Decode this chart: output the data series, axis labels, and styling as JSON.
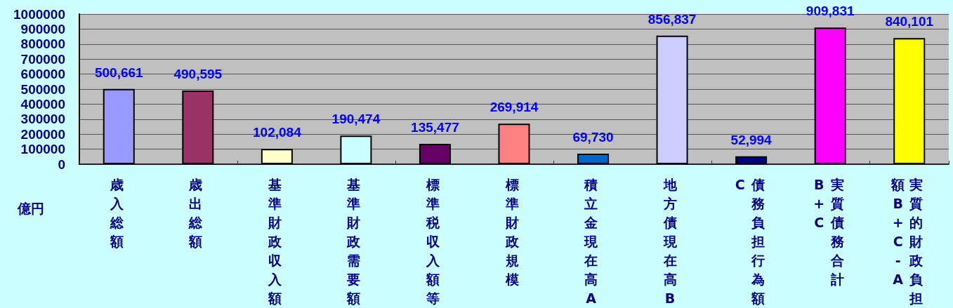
{
  "chart_data": {
    "type": "bar",
    "categories": [
      "歳入総額",
      "歳出総額",
      "基準財政収入額",
      "基準財政需要額",
      "標準税収入額等",
      "標準財政規模",
      "積立金現在高A",
      "地方債現在高B",
      "債務負担行為額C",
      "実質債務合計B+C",
      "実質的財政負担額B+C-A"
    ],
    "values": [
      500661,
      490595,
      102084,
      190474,
      135477,
      269914,
      69730,
      856837,
      52994,
      909831,
      840101
    ],
    "colors": [
      "#9999ff",
      "#993366",
      "#ffffcc",
      "#ccffff",
      "#660066",
      "#ff8080",
      "#0066cc",
      "#ccccff",
      "#000080",
      "#ff00ff",
      "#ffff00"
    ],
    "value_labels": [
      "500,661",
      "490,595",
      "102,084",
      "190,474",
      "135,477",
      "269,914",
      "69,730",
      "856,837",
      "52,994",
      "909,831",
      "840,101"
    ],
    "ylabel": "億円",
    "ylim": [
      0,
      1000000
    ],
    "yticks": [
      0,
      100000,
      200000,
      300000,
      400000,
      500000,
      600000,
      700000,
      800000,
      900000,
      1000000
    ],
    "grid": "y"
  }
}
